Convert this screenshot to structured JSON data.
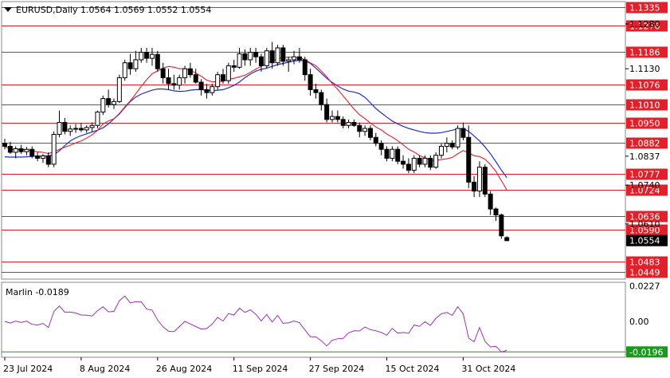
{
  "header": {
    "symbol_text": "EURUSD,Daily  1.0564 1.0569 1.0552 1.0554"
  },
  "indicator": {
    "label": "Marlin -0.0189",
    "y_ticks": [
      "0.0227",
      "0.00"
    ],
    "current_tag": "-0.0196"
  },
  "colors": {
    "level_line": "#e0202a",
    "tag_bg": "#e0202a",
    "ma_fast": "#e0202a",
    "ma_slow": "#2030c0",
    "oscillator": "#9a30b0",
    "oscillator_zero": "#1a9a1a",
    "candle": "#000000"
  },
  "chart_data": {
    "type": "candlestick",
    "ylim": [
      1.0425,
      1.1355
    ],
    "y_axis_labels": [
      "1.1280",
      "1.1130",
      "1.0837",
      "1.0740",
      "1.0610"
    ],
    "level_tags": [
      "1.1335",
      "1.1276",
      "1.1186",
      "1.1076",
      "1.1010",
      "1.0950",
      "1.0882",
      "1.0777",
      "1.0724",
      "1.0636",
      "1.0590",
      "1.0483",
      "1.0449"
    ],
    "price_tag": "1.0554",
    "x_tick_labels": [
      "23 Jul 2024",
      "8 Aug 2024",
      "26 Aug 2024",
      "11 Sep 2024",
      "27 Sep 2024",
      "15 Oct 2024",
      "31 Oct 2024"
    ],
    "candles": [
      [
        1.088,
        1.0895,
        1.086,
        1.087
      ],
      [
        1.087,
        1.0885,
        1.0845,
        1.085
      ],
      [
        1.085,
        1.087,
        1.083,
        1.0862
      ],
      [
        1.0862,
        1.0875,
        1.0845,
        1.0852
      ],
      [
        1.0852,
        1.0868,
        1.084,
        1.086
      ],
      [
        1.086,
        1.087,
        1.083,
        1.0838
      ],
      [
        1.0838,
        1.085,
        1.082,
        1.083
      ],
      [
        1.083,
        1.0845,
        1.0815,
        1.0838
      ],
      [
        1.0838,
        1.085,
        1.08,
        1.081
      ],
      [
        1.081,
        1.092,
        1.08,
        1.091
      ],
      [
        1.091,
        1.099,
        1.09,
        1.095
      ],
      [
        1.095,
        1.0965,
        1.091,
        1.092
      ],
      [
        1.092,
        1.094,
        1.0905,
        1.0928
      ],
      [
        1.0928,
        1.0945,
        1.0915,
        1.093
      ],
      [
        1.093,
        1.0948,
        1.0918,
        1.0925
      ],
      [
        1.0925,
        1.094,
        1.0915,
        1.0933
      ],
      [
        1.0933,
        1.095,
        1.092,
        1.094
      ],
      [
        1.094,
        1.099,
        1.093,
        1.0985
      ],
      [
        1.0985,
        1.104,
        1.0975,
        1.103
      ],
      [
        1.103,
        1.106,
        1.1,
        1.101
      ],
      [
        1.101,
        1.103,
        1.0995,
        1.102
      ],
      [
        1.102,
        1.111,
        1.1015,
        1.11
      ],
      [
        1.11,
        1.116,
        1.109,
        1.115
      ],
      [
        1.115,
        1.118,
        1.111,
        1.113
      ],
      [
        1.113,
        1.119,
        1.112,
        1.116
      ],
      [
        1.116,
        1.12,
        1.115,
        1.1185
      ],
      [
        1.1185,
        1.12,
        1.115,
        1.1165
      ],
      [
        1.1165,
        1.12,
        1.114,
        1.1178
      ],
      [
        1.1178,
        1.119,
        1.112,
        1.113
      ],
      [
        1.113,
        1.115,
        1.108,
        1.11
      ],
      [
        1.11,
        1.113,
        1.106,
        1.108
      ],
      [
        1.108,
        1.111,
        1.106,
        1.1075
      ],
      [
        1.1075,
        1.111,
        1.106,
        1.11
      ],
      [
        1.11,
        1.114,
        1.108,
        1.113
      ],
      [
        1.113,
        1.115,
        1.11,
        1.111
      ],
      [
        1.111,
        1.113,
        1.108,
        1.1085
      ],
      [
        1.1085,
        1.1095,
        1.104,
        1.106
      ],
      [
        1.106,
        1.108,
        1.103,
        1.105
      ],
      [
        1.105,
        1.108,
        1.104,
        1.107
      ],
      [
        1.107,
        1.112,
        1.106,
        1.111
      ],
      [
        1.111,
        1.113,
        1.108,
        1.109
      ],
      [
        1.109,
        1.115,
        1.108,
        1.114
      ],
      [
        1.114,
        1.116,
        1.112,
        1.1135
      ],
      [
        1.1135,
        1.12,
        1.113,
        1.118
      ],
      [
        1.118,
        1.1195,
        1.114,
        1.116
      ],
      [
        1.116,
        1.12,
        1.114,
        1.1185
      ],
      [
        1.1185,
        1.12,
        1.115,
        1.117
      ],
      [
        1.117,
        1.118,
        1.112,
        1.114
      ],
      [
        1.114,
        1.12,
        1.113,
        1.119
      ],
      [
        1.119,
        1.122,
        1.113,
        1.115
      ],
      [
        1.115,
        1.121,
        1.114,
        1.12
      ],
      [
        1.12,
        1.121,
        1.114,
        1.1155
      ],
      [
        1.1155,
        1.117,
        1.112,
        1.116
      ],
      [
        1.116,
        1.119,
        1.1145,
        1.117
      ],
      [
        1.117,
        1.12,
        1.115,
        1.116
      ],
      [
        1.116,
        1.117,
        1.109,
        1.111
      ],
      [
        1.111,
        1.113,
        1.104,
        1.106
      ],
      [
        1.106,
        1.108,
        1.103,
        1.105
      ],
      [
        1.105,
        1.106,
        1.099,
        1.101
      ],
      [
        1.101,
        1.103,
        1.095,
        1.096
      ],
      [
        1.096,
        1.099,
        1.095,
        1.097
      ],
      [
        1.097,
        1.099,
        1.095,
        1.096
      ],
      [
        1.096,
        1.097,
        1.093,
        1.094
      ],
      [
        1.094,
        1.096,
        1.093,
        1.095
      ],
      [
        1.095,
        1.096,
        1.0935,
        1.094
      ],
      [
        1.094,
        1.095,
        1.09,
        1.092
      ],
      [
        1.092,
        1.094,
        1.0905,
        1.093
      ],
      [
        1.093,
        1.094,
        1.089,
        1.09
      ],
      [
        1.09,
        1.0915,
        1.087,
        1.088
      ],
      [
        1.088,
        1.089,
        1.084,
        1.086
      ],
      [
        1.086,
        1.087,
        1.082,
        1.083
      ],
      [
        1.083,
        1.087,
        1.082,
        1.086
      ],
      [
        1.086,
        1.087,
        1.081,
        1.082
      ],
      [
        1.082,
        1.084,
        1.0795,
        1.081
      ],
      [
        1.081,
        1.083,
        1.078,
        1.079
      ],
      [
        1.079,
        1.084,
        1.078,
        1.083
      ],
      [
        1.083,
        1.084,
        1.08,
        1.081
      ],
      [
        1.081,
        1.084,
        1.08,
        1.083
      ],
      [
        1.083,
        1.084,
        1.079,
        1.08
      ],
      [
        1.08,
        1.085,
        1.0795,
        1.084
      ],
      [
        1.084,
        1.088,
        1.083,
        1.087
      ],
      [
        1.087,
        1.09,
        1.085,
        1.088
      ],
      [
        1.088,
        1.089,
        1.086,
        1.0868
      ],
      [
        1.0868,
        1.094,
        1.086,
        1.093
      ],
      [
        1.093,
        1.095,
        1.089,
        1.09
      ],
      [
        1.09,
        1.094,
        1.073,
        1.075
      ],
      [
        1.075,
        1.077,
        1.07,
        1.072
      ],
      [
        1.072,
        1.082,
        1.07,
        1.08
      ],
      [
        1.08,
        1.081,
        1.07,
        1.071
      ],
      [
        1.071,
        1.072,
        1.064,
        1.066
      ],
      [
        1.066,
        1.0665,
        1.062,
        1.064
      ],
      [
        1.064,
        1.0645,
        1.056,
        1.057
      ],
      [
        1.0564,
        1.0569,
        1.0552,
        1.0554
      ]
    ],
    "series": [
      {
        "values": [
          1.0835,
          1.0834,
          1.0834,
          1.0834,
          1.0835,
          1.0836,
          1.0837,
          1.0838,
          1.0838,
          1.0842,
          1.0855,
          1.0872,
          1.0888,
          1.0898,
          1.0906,
          1.0912,
          1.0918,
          1.0924,
          1.0932,
          1.0945,
          1.0962,
          1.0978,
          1.1,
          1.102,
          1.1035,
          1.1045,
          1.1052,
          1.1058,
          1.1062,
          1.1062,
          1.106,
          1.1056,
          1.1054,
          1.1055,
          1.1058,
          1.106,
          1.106,
          1.1058,
          1.1056,
          1.1058,
          1.106,
          1.1066,
          1.1074,
          1.1086,
          1.11,
          1.1112,
          1.1122,
          1.1128,
          1.1132,
          1.1138,
          1.1144,
          1.1148,
          1.1152,
          1.1156,
          1.1158,
          1.1156,
          1.1148,
          1.1132,
          1.1115,
          1.1098,
          1.1084,
          1.1072,
          1.1062,
          1.1055,
          1.1052,
          1.1046,
          1.1034,
          1.1016,
          1.0997,
          1.0982,
          1.0968,
          1.0955,
          1.0945,
          1.0937,
          1.093,
          1.0925,
          1.092,
          1.0916,
          1.0914,
          1.0914,
          1.0916,
          1.092,
          1.0924,
          1.0928,
          1.093,
          1.092,
          1.0905,
          1.0888,
          1.0868,
          1.0845,
          1.0818,
          1.079,
          1.0765
        ]
      },
      {
        "values": [
          null,
          null,
          null,
          null,
          null,
          null,
          null,
          null,
          null,
          null,
          null,
          null,
          null,
          null,
          null,
          null,
          null,
          null,
          null,
          null,
          null,
          null,
          null,
          null,
          null,
          null,
          null,
          null,
          null,
          null,
          null,
          null,
          null,
          null,
          null,
          null,
          null,
          null,
          null,
          null,
          null,
          null,
          null,
          null,
          null,
          null,
          null,
          null,
          null,
          null,
          null,
          null,
          null,
          null,
          null,
          null,
          null,
          null,
          null,
          null,
          null,
          null,
          null,
          null,
          null,
          null,
          null,
          null,
          null,
          null,
          null,
          null,
          null,
          null,
          null,
          null,
          null,
          null,
          null,
          null,
          null,
          null,
          null,
          null,
          null,
          null,
          null,
          null,
          null,
          null,
          null,
          null,
          null
        ]
      }
    ]
  }
}
